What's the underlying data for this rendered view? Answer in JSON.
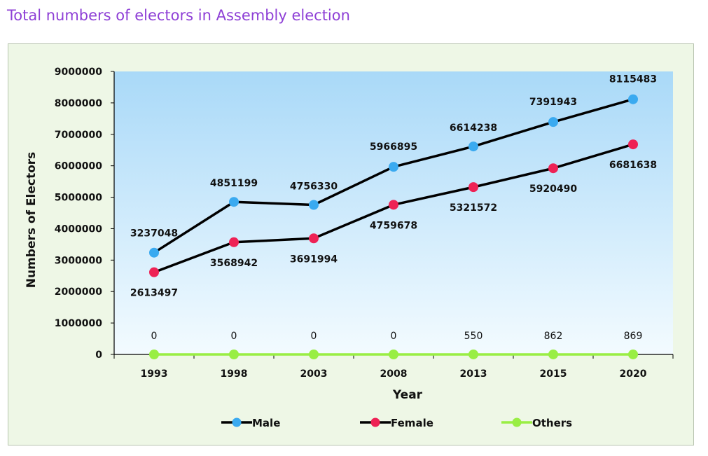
{
  "page": {
    "title": "Total numbers of electors in Assembly election"
  },
  "chart_data": {
    "type": "line",
    "x": [
      "1993",
      "1998",
      "2003",
      "2008",
      "2013",
      "2015",
      "2020"
    ],
    "xlabel": "Year",
    "ylabel": "Numbers  of Electors",
    "ylim": [
      0,
      9000000
    ],
    "yticks": [
      0,
      1000000,
      2000000,
      3000000,
      4000000,
      5000000,
      6000000,
      7000000,
      8000000,
      9000000
    ],
    "legend_position": "bottom",
    "series": [
      {
        "name": "Male",
        "color": "#3aaaf0",
        "values": [
          3237048,
          4851199,
          4756330,
          5966895,
          6614238,
          7391943,
          8115483
        ]
      },
      {
        "name": "Female",
        "color": "#ee2255",
        "values": [
          2613497,
          3568942,
          3691994,
          4759678,
          5321572,
          5920490,
          6681638
        ]
      },
      {
        "name": "Others",
        "color": "#99ee44",
        "values": [
          0,
          0,
          0,
          0,
          550,
          862,
          869
        ]
      }
    ]
  }
}
